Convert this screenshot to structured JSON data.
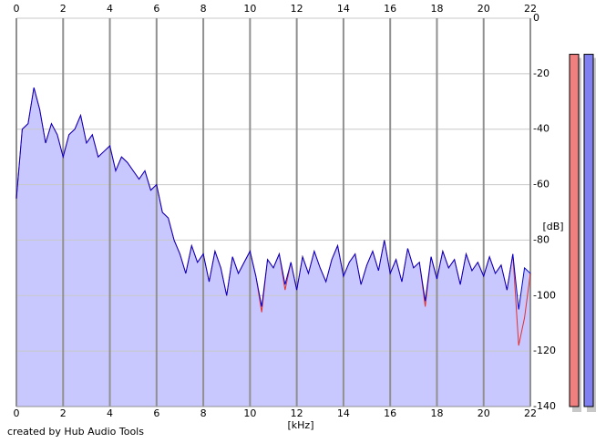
{
  "chart_data": {
    "type": "area",
    "x": [
      0,
      0.25,
      0.5,
      0.75,
      1,
      1.25,
      1.5,
      1.75,
      2,
      2.25,
      2.5,
      2.75,
      3,
      3.25,
      3.5,
      3.75,
      4,
      4.25,
      4.5,
      4.75,
      5,
      5.25,
      5.5,
      5.75,
      6,
      6.25,
      6.5,
      6.75,
      7,
      7.25,
      7.5,
      7.75,
      8,
      8.25,
      8.5,
      8.75,
      9,
      9.25,
      9.5,
      9.75,
      10,
      10.25,
      10.5,
      10.75,
      11,
      11.25,
      11.5,
      11.75,
      12,
      12.25,
      12.5,
      12.75,
      13,
      13.25,
      13.5,
      13.75,
      14,
      14.25,
      14.5,
      14.75,
      15,
      15.25,
      15.5,
      15.75,
      16,
      16.25,
      16.5,
      16.75,
      17,
      17.25,
      17.5,
      17.75,
      18,
      18.25,
      18.5,
      18.75,
      19,
      19.25,
      19.5,
      19.75,
      20,
      20.25,
      20.5,
      20.75,
      21,
      21.25,
      21.5,
      21.75,
      22
    ],
    "series": [
      {
        "color": "#e03030",
        "values": [
          -65,
          -40,
          -38,
          -25,
          -33,
          -45,
          -38,
          -42,
          -50,
          -42,
          -40,
          -35,
          -45,
          -42,
          -50,
          -48,
          -46,
          -55,
          -50,
          -52,
          -55,
          -58,
          -55,
          -62,
          -60,
          -70,
          -72,
          -80,
          -85,
          -92,
          -82,
          -88,
          -85,
          -95,
          -84,
          -90,
          -100,
          -86,
          -92,
          -88,
          -84,
          -93,
          -106,
          -87,
          -90,
          -85,
          -98,
          -88,
          -98,
          -86,
          -92,
          -84,
          -90,
          -95,
          -87,
          -82,
          -93,
          -88,
          -85,
          -96,
          -89,
          -84,
          -91,
          -80,
          -92,
          -87,
          -95,
          -83,
          -90,
          -88,
          -104,
          -86,
          -94,
          -84,
          -90,
          -87,
          -96,
          -85,
          -91,
          -88,
          -93,
          -86,
          -92,
          -89,
          -98,
          -85,
          -118,
          -108,
          -92
        ]
      },
      {
        "color": "#0000cc",
        "fill": "#c8c8ff",
        "values": [
          -65,
          -40,
          -38,
          -25,
          -33,
          -45,
          -38,
          -42,
          -50,
          -42,
          -40,
          -35,
          -45,
          -42,
          -50,
          -48,
          -46,
          -55,
          -50,
          -52,
          -55,
          -58,
          -55,
          -62,
          -60,
          -70,
          -72,
          -80,
          -85,
          -92,
          -82,
          -88,
          -85,
          -95,
          -84,
          -90,
          -100,
          -86,
          -92,
          -88,
          -84,
          -93,
          -104,
          -87,
          -90,
          -85,
          -96,
          -88,
          -98,
          -86,
          -92,
          -84,
          -90,
          -95,
          -87,
          -82,
          -93,
          -88,
          -85,
          -96,
          -89,
          -84,
          -91,
          -80,
          -92,
          -87,
          -95,
          -83,
          -90,
          -88,
          -102,
          -86,
          -94,
          -84,
          -90,
          -87,
          -96,
          -85,
          -91,
          -88,
          -93,
          -86,
          -92,
          -89,
          -98,
          -85,
          -105,
          -90,
          -92
        ]
      }
    ],
    "xlim": [
      0,
      22
    ],
    "xticks": [
      0,
      2,
      4,
      6,
      8,
      10,
      12,
      14,
      16,
      18,
      20,
      22
    ],
    "ylim": [
      -140,
      0
    ],
    "yticks": [
      0,
      -20,
      -40,
      -60,
      -80,
      -100,
      -120,
      -140
    ],
    "xlabel": "[kHz]",
    "ylabel": "[dB]",
    "grid": true,
    "meters": [
      {
        "color": "#f08080",
        "value": -13
      },
      {
        "color": "#8080f0",
        "value": -13
      }
    ],
    "credit": "created by Hub Audio Tools"
  }
}
